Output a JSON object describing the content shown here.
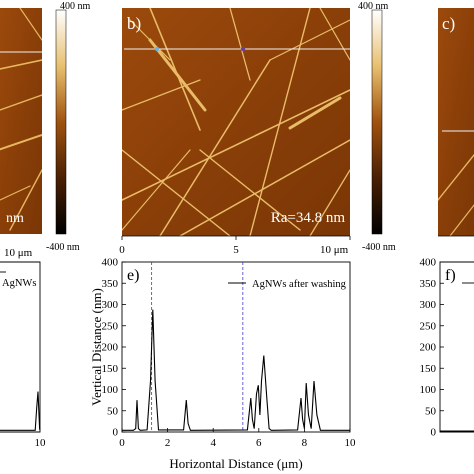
{
  "panels": {
    "a": {
      "ra_suffix": "nm",
      "x_end": "10 μm",
      "legend": "AgNWs",
      "y_end": "10"
    },
    "b": {
      "label": "b)",
      "ra": "Ra=34.8 nm",
      "x_ticks": [
        "0",
        "5",
        "10 μm"
      ]
    },
    "c": {
      "label": "c)"
    },
    "e": {
      "label": "e)",
      "legend": "AgNWs after washing"
    },
    "f": {
      "label": "f)"
    }
  },
  "colorbars": [
    {
      "max": "400 nm",
      "min": "-400 nm"
    },
    {
      "max": "400 nm",
      "min": "-400 nm"
    }
  ],
  "chart_data": {
    "type": "line",
    "title": "",
    "xlabel": "Horizontal Distance (μm)",
    "ylabel": "Vertical Distance (nm)",
    "xlim": [
      0,
      10
    ],
    "ylim": [
      0,
      400
    ],
    "x_ticks": [
      "0",
      "2",
      "4",
      "6",
      "8",
      "10"
    ],
    "y_ticks": [
      "0",
      "50",
      "100",
      "150",
      "200",
      "250",
      "300",
      "350",
      "400"
    ],
    "legend": "top-right",
    "series": [
      {
        "name": "AgNWs after washing",
        "x": [
          0,
          0.5,
          0.6,
          0.66,
          0.72,
          0.8,
          1.1,
          1.25,
          1.35,
          1.45,
          1.6,
          2.7,
          2.82,
          2.9,
          3.0,
          5.5,
          5.65,
          5.72,
          5.8,
          5.9,
          5.98,
          6.05,
          6.12,
          6.22,
          6.35,
          6.45,
          6.55,
          7.7,
          7.85,
          7.92,
          8.0,
          8.08,
          8.18,
          8.3,
          8.42,
          8.55,
          8.7,
          10
        ],
        "y": [
          4,
          4,
          8,
          75,
          8,
          4,
          5,
          120,
          288,
          120,
          5,
          5,
          75,
          20,
          4,
          5,
          80,
          30,
          8,
          90,
          110,
          40,
          120,
          180,
          80,
          8,
          4,
          5,
          80,
          30,
          8,
          115,
          40,
          8,
          120,
          40,
          4,
          4
        ]
      }
    ],
    "markers": [
      1.3,
      5.3
    ]
  },
  "left_curve": {
    "x": [
      0,
      8.8,
      9.2,
      9.5,
      9.9,
      10
    ],
    "y": [
      4,
      4,
      60,
      95,
      8,
      4
    ]
  },
  "right_ticks": {
    "y": [
      "400",
      "350",
      "300",
      "250",
      "200",
      "150",
      "100",
      "50",
      "0"
    ]
  }
}
